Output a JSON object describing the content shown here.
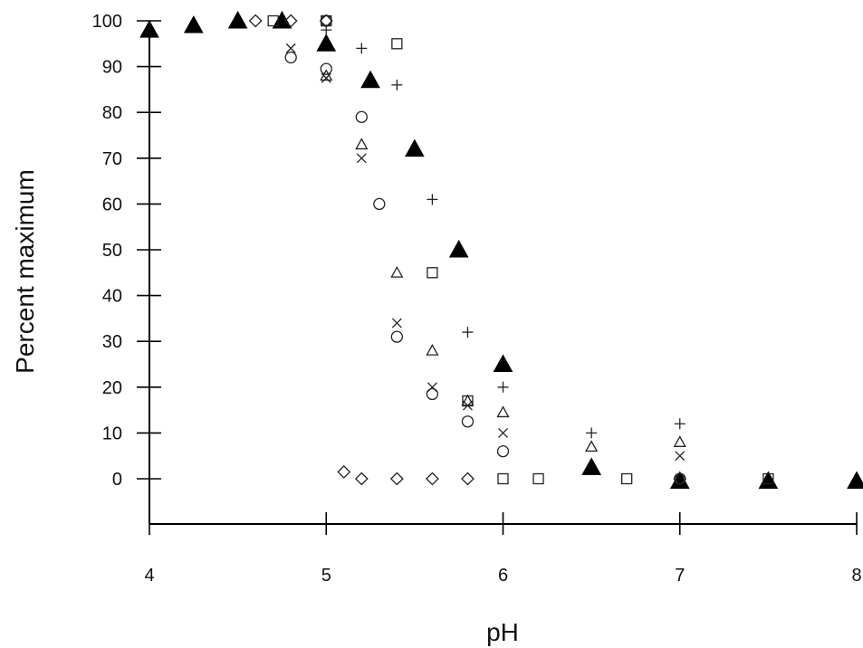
{
  "chart_data": {
    "type": "scatter",
    "title": "",
    "xlabel": "pH",
    "ylabel": "Percent maximum",
    "xlim": [
      4,
      8
    ],
    "ylim": [
      -10,
      100
    ],
    "xticks": [
      4,
      5,
      6,
      7,
      8
    ],
    "yticks": [
      0,
      10,
      20,
      30,
      40,
      50,
      60,
      70,
      80,
      90,
      100
    ],
    "grid": false,
    "legend": "none",
    "series": [
      {
        "marker": "filled-triangle",
        "points": [
          [
            4.0,
            98
          ],
          [
            4.25,
            99
          ],
          [
            4.5,
            100
          ],
          [
            4.75,
            100
          ],
          [
            5.0,
            95
          ],
          [
            5.25,
            87
          ],
          [
            5.5,
            72
          ],
          [
            5.75,
            50
          ],
          [
            6.0,
            25
          ],
          [
            6.5,
            2.5
          ],
          [
            7.0,
            -0.5
          ],
          [
            7.5,
            -0.5
          ],
          [
            8.0,
            -0.5
          ]
        ]
      },
      {
        "marker": "plus",
        "points": [
          [
            5.0,
            98
          ],
          [
            5.2,
            94
          ],
          [
            5.4,
            86
          ],
          [
            5.6,
            61
          ],
          [
            5.8,
            32
          ],
          [
            6.0,
            20
          ],
          [
            6.5,
            10
          ],
          [
            7.0,
            12
          ]
        ]
      },
      {
        "marker": "open-square",
        "points": [
          [
            4.7,
            100
          ],
          [
            5.0,
            100
          ],
          [
            5.4,
            95
          ],
          [
            5.6,
            45
          ],
          [
            5.8,
            17
          ],
          [
            6.0,
            0
          ],
          [
            6.2,
            0
          ],
          [
            6.7,
            0
          ],
          [
            7.5,
            0
          ]
        ]
      },
      {
        "marker": "open-circle",
        "points": [
          [
            4.8,
            92
          ],
          [
            5.0,
            100
          ],
          [
            5.0,
            89.5
          ],
          [
            5.2,
            79
          ],
          [
            5.3,
            60
          ],
          [
            5.4,
            31
          ],
          [
            5.6,
            18.5
          ],
          [
            5.8,
            12.5
          ],
          [
            6.0,
            6
          ],
          [
            7.0,
            0
          ]
        ]
      },
      {
        "marker": "cross",
        "points": [
          [
            4.8,
            94
          ],
          [
            5.0,
            87.5
          ],
          [
            5.2,
            70
          ],
          [
            5.4,
            34
          ],
          [
            5.6,
            20
          ],
          [
            5.8,
            16
          ],
          [
            6.0,
            10
          ],
          [
            7.0,
            5
          ]
        ]
      },
      {
        "marker": "open-triangle",
        "points": [
          [
            5.0,
            88
          ],
          [
            5.2,
            73
          ],
          [
            5.4,
            45
          ],
          [
            5.6,
            28
          ],
          [
            5.8,
            17
          ],
          [
            6.0,
            14.5
          ],
          [
            6.5,
            7
          ],
          [
            7.0,
            8
          ]
        ]
      },
      {
        "marker": "open-diamond",
        "points": [
          [
            4.6,
            100
          ],
          [
            4.8,
            100
          ],
          [
            5.0,
            100
          ],
          [
            5.1,
            1.5
          ],
          [
            5.2,
            0
          ],
          [
            5.4,
            0
          ],
          [
            5.6,
            0
          ],
          [
            5.8,
            0
          ],
          [
            7.0,
            0
          ]
        ]
      }
    ]
  }
}
